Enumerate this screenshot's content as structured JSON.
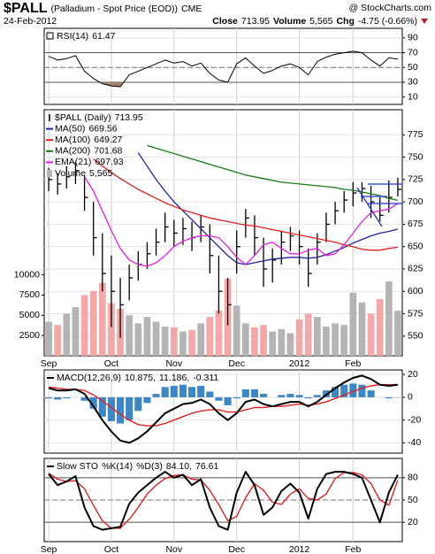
{
  "header": {
    "symbol": "$PALL",
    "description": "(Palladium - Spot Price (EOD))",
    "exchange": "CME",
    "date": "24-Feb-2012",
    "close_label": "Close",
    "close": "713.95",
    "volume_label": "Volume",
    "volume": "5,565",
    "change_label": "Chg",
    "change": "-4.75 (-0.66%)",
    "source": "@ StockCharts.com"
  },
  "chart_data": [
    {
      "type": "rsi",
      "series": [
        {
          "name": "RSI(14)",
          "color": "#000000",
          "legend_value": "61.47",
          "values": [
            65,
            60,
            62,
            66,
            45,
            35,
            28,
            25,
            24,
            40,
            45,
            50,
            55,
            60,
            56,
            58,
            52,
            56,
            42,
            33,
            30,
            55,
            63,
            52,
            42,
            46,
            52,
            55,
            50,
            40,
            58,
            64,
            68,
            70,
            72,
            70,
            60,
            52,
            63,
            61.47
          ]
        }
      ],
      "fill_color": "#a88070",
      "bands": [
        30,
        70
      ],
      "midline": 50,
      "ylim": [
        0,
        103
      ],
      "yticks": [
        90,
        70,
        50,
        30,
        10
      ]
    },
    {
      "type": "ohlc",
      "title": "$PALL (Daily)",
      "legend_value": "713.95",
      "color": "#000000",
      "categories": [
        "Sep",
        null,
        null,
        null,
        null,
        null,
        null,
        "Oct",
        null,
        null,
        null,
        null,
        null,
        null,
        "Nov",
        null,
        null,
        null,
        null,
        null,
        null,
        "Dec",
        null,
        null,
        null,
        null,
        null,
        null,
        "2012",
        null,
        null,
        null,
        null,
        null,
        "Feb",
        null,
        null,
        null,
        null,
        null
      ],
      "high": [
        738,
        732,
        740,
        745,
        730,
        700,
        665,
        640,
        615,
        630,
        645,
        655,
        670,
        688,
        680,
        682,
        678,
        685,
        675,
        640,
        615,
        668,
        692,
        685,
        660,
        648,
        668,
        672,
        668,
        648,
        665,
        688,
        700,
        712,
        722,
        722,
        718,
        705,
        724,
        727
      ],
      "low": [
        712,
        708,
        715,
        720,
        690,
        640,
        600,
        560,
        548,
        590,
        612,
        625,
        640,
        655,
        650,
        652,
        645,
        655,
        620,
        575,
        562,
        620,
        660,
        640,
        605,
        610,
        630,
        645,
        630,
        605,
        630,
        655,
        675,
        688,
        695,
        700,
        682,
        678,
        688,
        706
      ],
      "close": [
        725,
        720,
        728,
        735,
        705,
        660,
        620,
        600,
        585,
        615,
        630,
        642,
        655,
        672,
        665,
        670,
        660,
        672,
        640,
        600,
        585,
        650,
        682,
        660,
        625,
        635,
        655,
        662,
        650,
        620,
        655,
        675,
        690,
        702,
        710,
        715,
        700,
        685,
        705,
        713.95
      ],
      "series": [
        {
          "name": "MA(50)",
          "color": "#22229a",
          "legend_value": "669.56",
          "values": [
            null,
            null,
            null,
            null,
            null,
            null,
            null,
            null,
            null,
            null,
            755,
            740,
            725,
            712,
            700,
            690,
            680,
            670,
            660,
            650,
            640,
            632,
            630,
            632,
            634,
            636,
            637,
            638,
            638,
            637,
            638,
            641,
            645,
            649,
            654,
            658,
            662,
            665,
            667,
            669.56
          ]
        },
        {
          "name": "MA(100)",
          "color": "#dd2222",
          "legend_value": "649.27",
          "values": [
            null,
            null,
            null,
            null,
            null,
            748,
            740,
            733,
            726,
            720,
            714,
            709,
            704,
            699,
            695,
            691,
            688,
            685,
            682,
            680,
            678,
            676,
            674,
            673,
            671,
            669,
            667,
            665,
            663,
            661,
            659,
            657,
            655,
            652,
            650,
            647,
            646,
            646,
            648,
            649.27
          ]
        },
        {
          "name": "MA(200)",
          "color": "#1a7a1a",
          "legend_value": "701.68",
          "values": [
            null,
            null,
            null,
            null,
            null,
            null,
            null,
            null,
            null,
            null,
            null,
            763,
            760,
            757,
            754,
            751,
            748,
            745,
            742,
            739,
            736,
            733,
            730,
            728,
            726,
            724,
            722,
            721,
            720,
            719,
            718,
            717,
            716,
            714,
            713,
            711,
            709,
            707,
            704,
            701.68
          ]
        },
        {
          "name": "EMA(21)",
          "color": "#e020e0",
          "legend_value": "697.93",
          "values": [
            null,
            null,
            null,
            null,
            728,
            712,
            690,
            668,
            648,
            635,
            630,
            628,
            632,
            640,
            650,
            656,
            660,
            662,
            662,
            660,
            650,
            638,
            630,
            640,
            652,
            655,
            648,
            642,
            642,
            646,
            648,
            640,
            642,
            652,
            665,
            678,
            688,
            690,
            692,
            697.93
          ]
        }
      ],
      "volume": {
        "name": "Volume",
        "legend_value": "5,565",
        "axis": "y2",
        "up_color": "#b4b4b4",
        "down_color": "#f0a8a8",
        "values": [
          4200,
          3800,
          5200,
          6000,
          7500,
          8000,
          9000,
          6500,
          5800,
          5000,
          4000,
          4800,
          4200,
          3600,
          3500,
          3000,
          3200,
          4000,
          4800,
          5600,
          9500,
          6200,
          4000,
          3500,
          3800,
          3000,
          3300,
          2800,
          4500,
          5200,
          4800,
          3600,
          4000,
          3800,
          7800,
          6600,
          5200,
          7000,
          9200,
          5565
        ]
      },
      "ylim": [
        528,
        803
      ],
      "yticks": [
        550,
        575,
        600,
        625,
        650,
        675,
        700,
        725,
        750,
        775
      ],
      "y2lim": [
        0,
        30400
      ],
      "y2ticks": [
        2500,
        5000,
        7500,
        10000
      ],
      "grid": true
    },
    {
      "type": "macd",
      "title": "MACD(12,26,9)",
      "series": [
        {
          "color": "#000000",
          "legend_value": "10.875,",
          "values": [
            8,
            6,
            6,
            7,
            3,
            -8,
            -20,
            -30,
            -38,
            -40,
            -36,
            -30,
            -22,
            -14,
            -10,
            -6,
            -5,
            -2,
            -6,
            -14,
            -20,
            -14,
            -4,
            -2,
            -6,
            -8,
            -6,
            -4,
            -4,
            -8,
            -4,
            2,
            8,
            13,
            17,
            19,
            16,
            11,
            10,
            10.875
          ]
        },
        {
          "color": "#dd2222",
          "legend_value": "11.186,",
          "values": [
            9,
            8,
            7,
            7,
            6,
            2,
            -3,
            -9,
            -15,
            -20,
            -24,
            -25,
            -25,
            -23,
            -20,
            -17,
            -14,
            -12,
            -11,
            -11,
            -13,
            -13,
            -11,
            -9,
            -9,
            -8,
            -8,
            -7,
            -6,
            -7,
            -6,
            -4,
            -1,
            2,
            5,
            8,
            10,
            11,
            11,
            11.186
          ]
        },
        {
          "color": "#3f86c4",
          "legend_value": "-0.311",
          "values": [
            -1,
            -2,
            -1,
            0,
            -3,
            -10,
            -17,
            -21,
            -23,
            -20,
            -12,
            -5,
            3,
            9,
            10,
            11,
            9,
            10,
            5,
            -3,
            -7,
            -1,
            7,
            7,
            3,
            0,
            2,
            3,
            2,
            -1,
            2,
            6,
            9,
            11,
            12,
            11,
            6,
            0,
            -1,
            -0.311
          ]
        }
      ],
      "ylim": [
        -49,
        24
      ],
      "yticks": [
        20,
        0,
        -20,
        -40
      ]
    },
    {
      "type": "sto",
      "title": "Slow STO",
      "categories": [
        "Sep",
        null,
        null,
        null,
        null,
        null,
        null,
        "Oct",
        null,
        null,
        null,
        null,
        null,
        null,
        "Nov",
        null,
        null,
        null,
        null,
        null,
        null,
        "Dec",
        null,
        null,
        null,
        null,
        null,
        null,
        "2012",
        null,
        null,
        null,
        null,
        null,
        "Feb",
        null,
        null,
        null,
        null,
        null
      ],
      "series": [
        {
          "name": "%K(14)",
          "color": "#000000",
          "legend_value": "84.10,",
          "values": [
            85,
            70,
            75,
            82,
            40,
            15,
            10,
            12,
            14,
            45,
            60,
            70,
            80,
            88,
            80,
            84,
            70,
            78,
            40,
            15,
            10,
            60,
            88,
            70,
            30,
            40,
            62,
            72,
            60,
            25,
            65,
            85,
            88,
            88,
            85,
            80,
            50,
            20,
            60,
            84.1
          ]
        },
        {
          "name": "%D(3)",
          "color": "#dd2222",
          "legend_value": "76.61",
          "values": [
            86,
            78,
            75,
            76,
            65,
            43,
            22,
            12,
            12,
            24,
            40,
            58,
            70,
            79,
            83,
            84,
            78,
            77,
            63,
            44,
            22,
            28,
            53,
            72,
            63,
            47,
            44,
            58,
            65,
            52,
            50,
            58,
            79,
            87,
            87,
            84,
            72,
            50,
            43,
            76.61
          ]
        }
      ],
      "bands": [
        20,
        80
      ],
      "midline": 50,
      "ylim": [
        -6,
        106
      ],
      "yticks": [
        80,
        50,
        20
      ]
    }
  ]
}
